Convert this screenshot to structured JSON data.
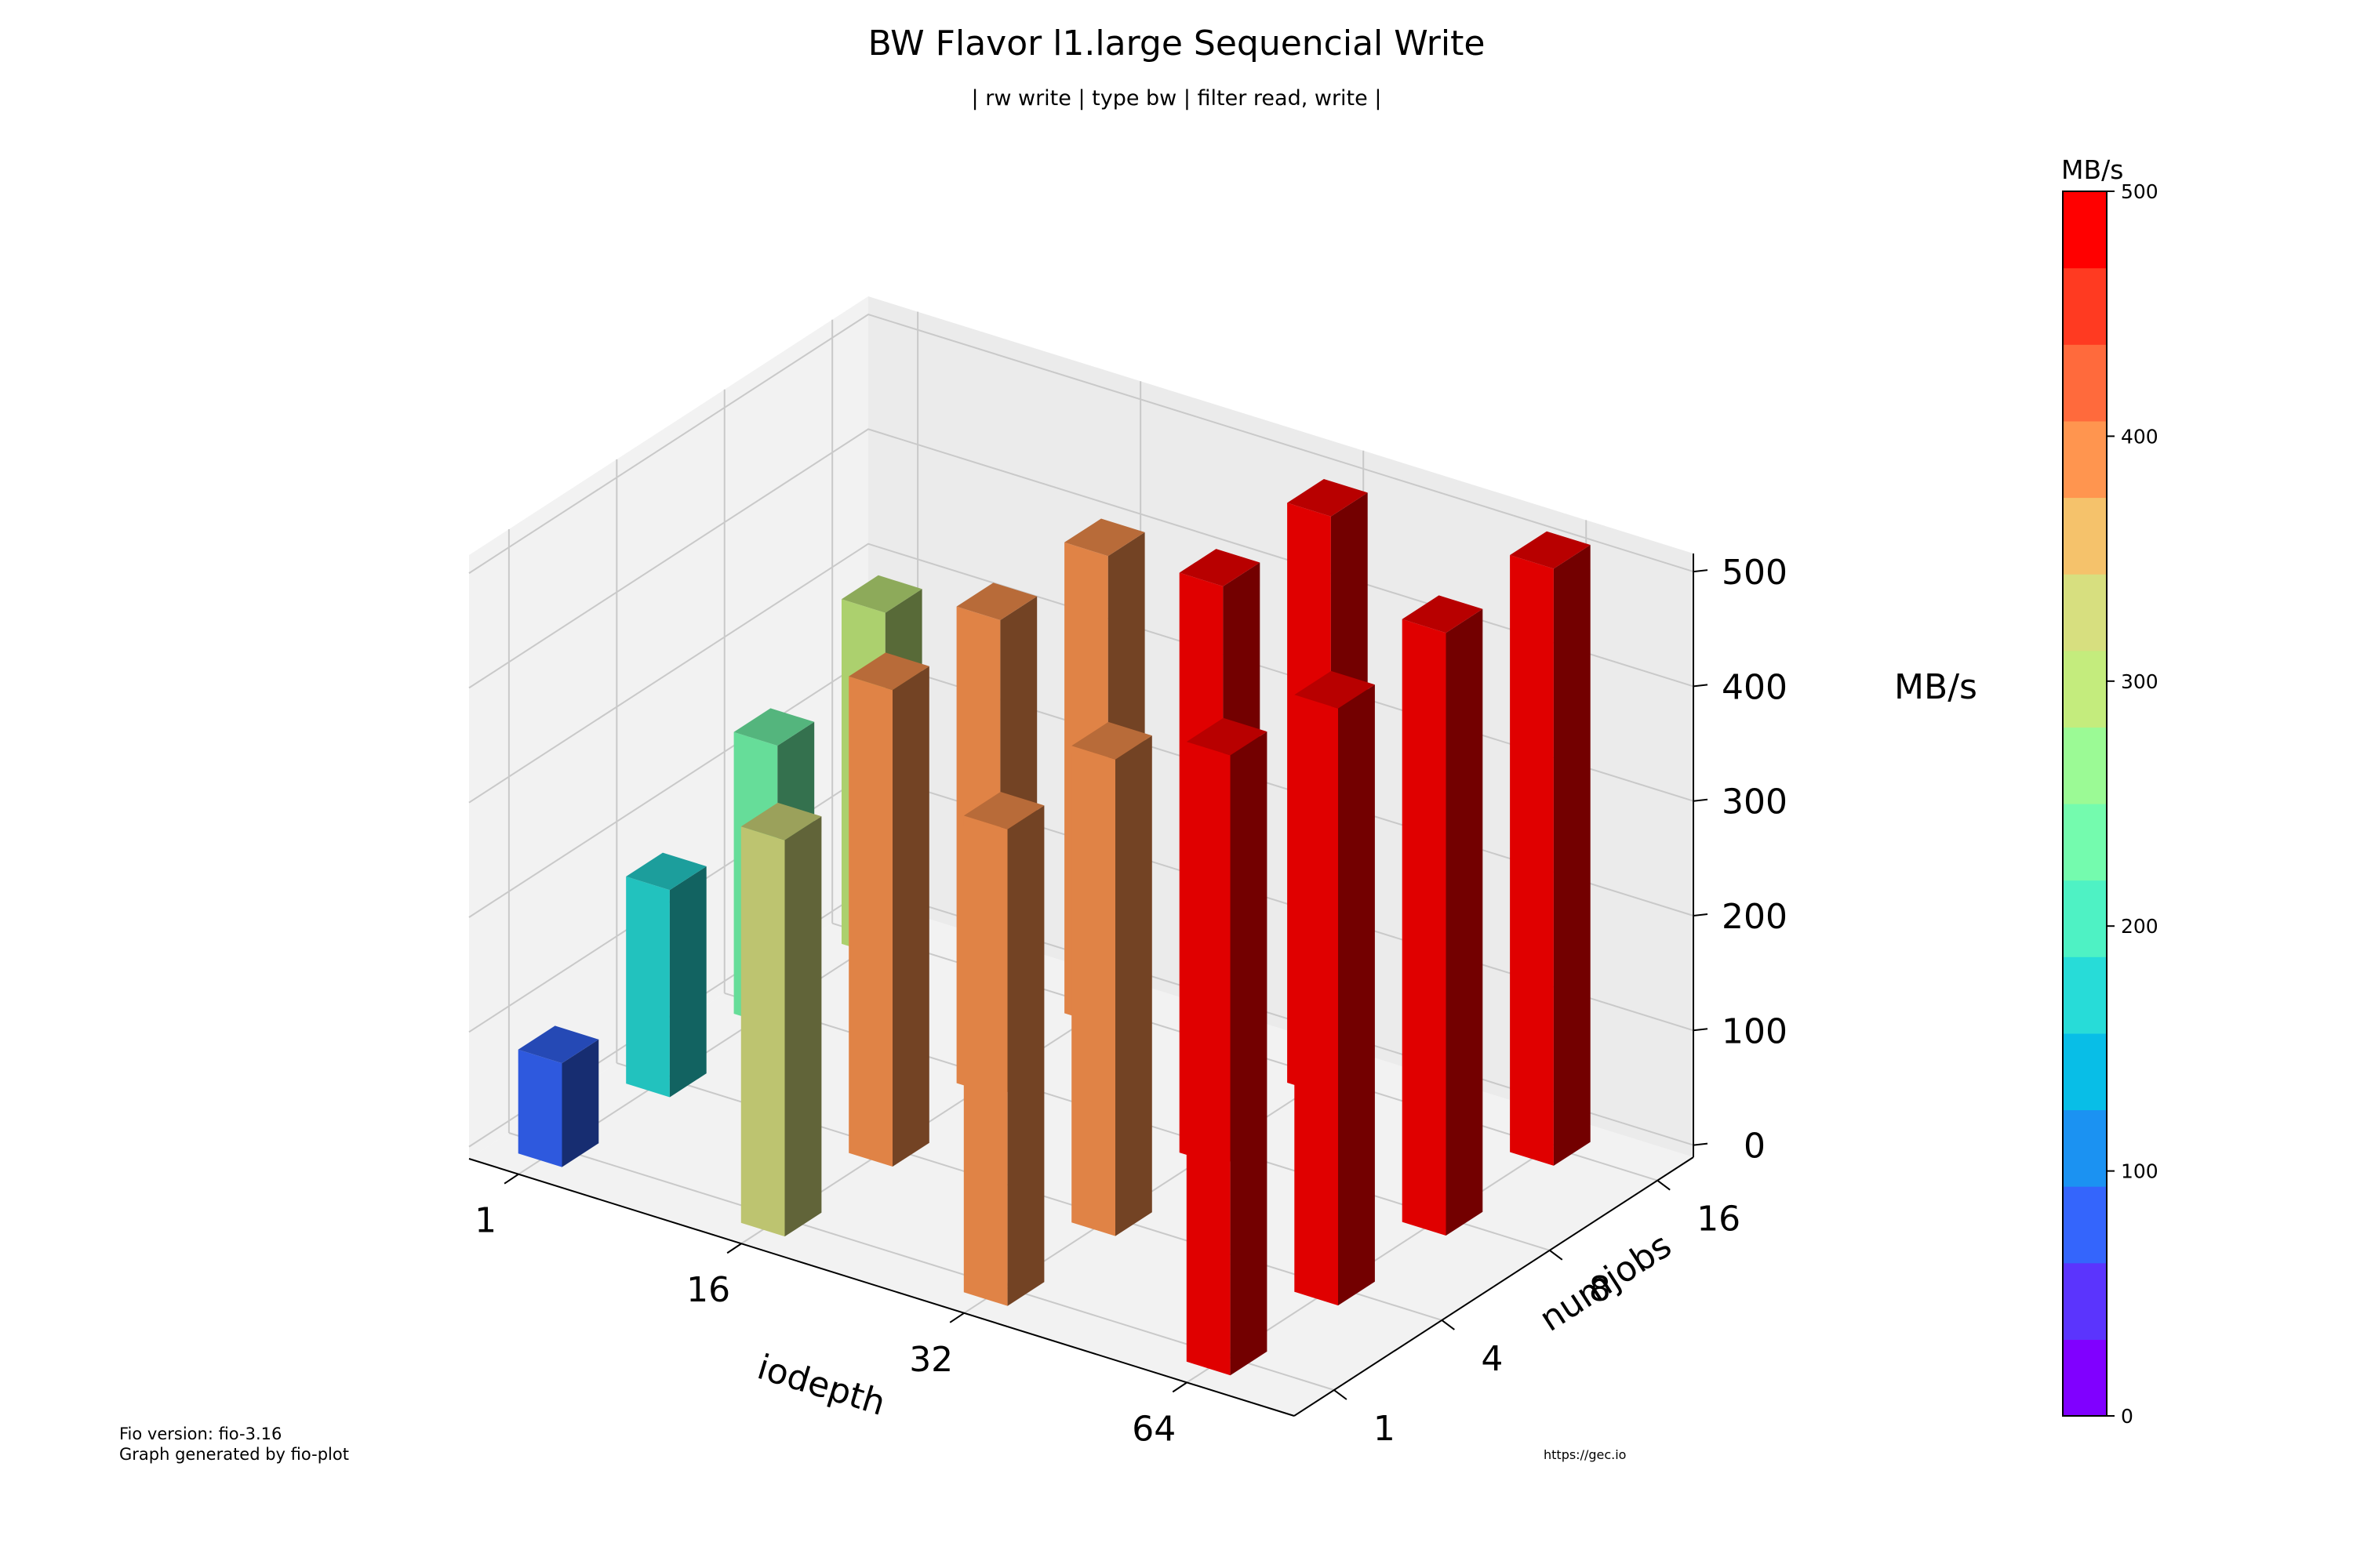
{
  "chart_data": {
    "type": "bar3d",
    "title": "BW Flavor l1.large Sequencial Write",
    "subtitle": "| rw write | type bw | filter read, write |",
    "xlabel": "iodepth",
    "ylabel": "numjobs",
    "zlabel": "MB/s",
    "x_categories": [
      "1",
      "16",
      "32",
      "64"
    ],
    "y_categories": [
      "1",
      "4",
      "8",
      "16"
    ],
    "zlim": [
      0,
      500
    ],
    "z_ticks": [
      "0",
      "100",
      "200",
      "300",
      "400",
      "500"
    ],
    "bars": [
      {
        "iodepth": "1",
        "numjobs": "1",
        "value": 80
      },
      {
        "iodepth": "1",
        "numjobs": "4",
        "value": 170
      },
      {
        "iodepth": "1",
        "numjobs": "8",
        "value": 235
      },
      {
        "iodepth": "1",
        "numjobs": "16",
        "value": 290
      },
      {
        "iodepth": "16",
        "numjobs": "1",
        "value": 335
      },
      {
        "iodepth": "16",
        "numjobs": "4",
        "value": 405
      },
      {
        "iodepth": "16",
        "numjobs": "8",
        "value": 405
      },
      {
        "iodepth": "16",
        "numjobs": "16",
        "value": 400
      },
      {
        "iodepth": "32",
        "numjobs": "1",
        "value": 405
      },
      {
        "iodepth": "32",
        "numjobs": "4",
        "value": 405
      },
      {
        "iodepth": "32",
        "numjobs": "8",
        "value": 495
      },
      {
        "iodepth": "32",
        "numjobs": "16",
        "value": 495
      },
      {
        "iodepth": "64",
        "numjobs": "1",
        "value": 530
      },
      {
        "iodepth": "64",
        "numjobs": "4",
        "value": 510
      },
      {
        "iodepth": "64",
        "numjobs": "8",
        "value": 515
      },
      {
        "iodepth": "64",
        "numjobs": "16",
        "value": 510
      }
    ],
    "colorbar": {
      "title": "MB/s",
      "range": [
        0,
        500
      ],
      "ticks": [
        "0",
        "100",
        "200",
        "300",
        "400",
        "500"
      ],
      "colors": [
        "#8000ff",
        "#5b34fd",
        "#3465fc",
        "#1b92f2",
        "#08bee7",
        "#27dcd8",
        "#4ef2c4",
        "#74fbae",
        "#9bfa95",
        "#c4ec7d",
        "#d7df7f",
        "#f5c26b",
        "#ff954f",
        "#ff6a3c",
        "#ff3a21",
        "#ff0000"
      ]
    }
  },
  "footer": {
    "fio_version": "Fio version: fio-3.16",
    "generated_by": "Graph generated by fio-plot",
    "url": "https://gec.io"
  }
}
